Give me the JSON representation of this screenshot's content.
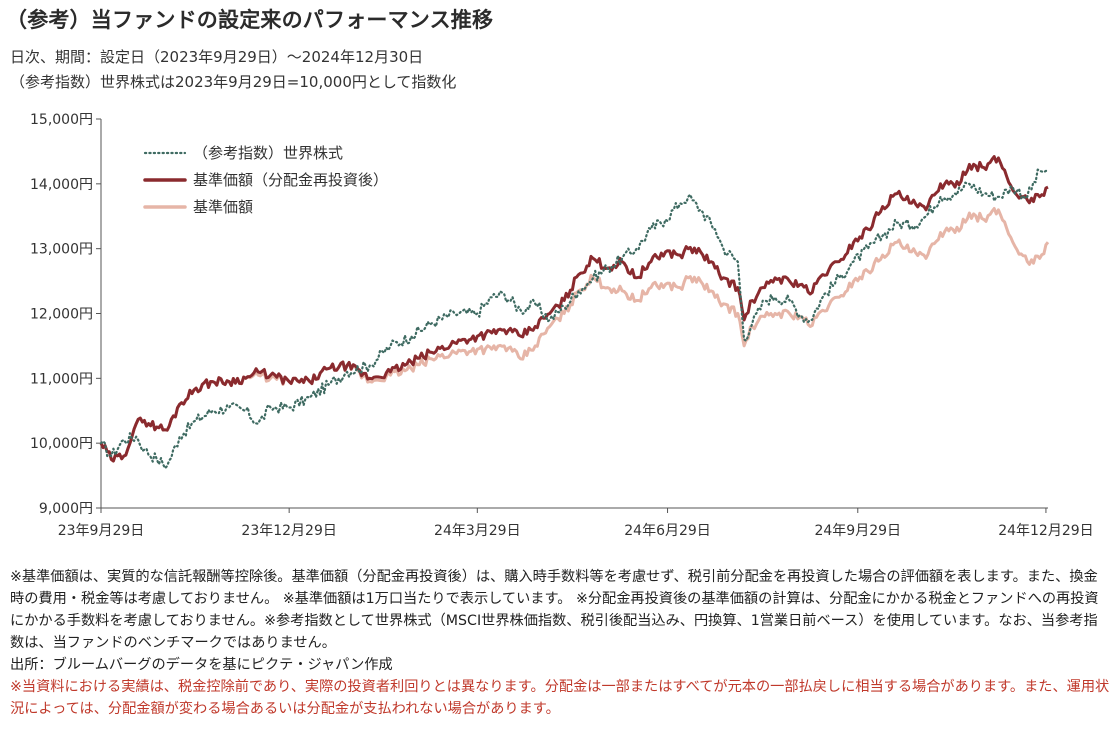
{
  "header": {
    "title": "（参考）当ファンドの設定来のパフォーマンス推移",
    "subtitle1": "日次、期間：設定日（2023年9月29日）～2024年12月30日",
    "subtitle2": "（参考指数）世界株式は2023年9月29日=10,000円として指数化"
  },
  "chart_data": {
    "type": "line",
    "ylim": [
      9000,
      15000
    ],
    "y_ticks": [
      9000,
      10000,
      11000,
      12000,
      13000,
      14000,
      15000
    ],
    "y_tick_labels": [
      "9,000円",
      "10,000円",
      "11,000円",
      "12,000円",
      "13,000円",
      "14,000円",
      "15,000円"
    ],
    "x_range": [
      "2023-09-29",
      "2024-12-30"
    ],
    "x_ticks": [
      "2023-09-29",
      "2023-12-29",
      "2024-03-29",
      "2024-06-29",
      "2024-09-29",
      "2024-12-29"
    ],
    "x_tick_labels": [
      "23年9月29日",
      "23年12月29日",
      "24年3月29日",
      "24年6月29日",
      "24年9月29日",
      "24年12月29日"
    ],
    "legend_position": "top-left",
    "grid": false,
    "series": [
      {
        "name": "（参考指数）世界株式",
        "style": "dotted",
        "color": "#3f6b62",
        "points": [
          [
            "2023-09-29",
            10000
          ],
          [
            "2023-10-04",
            9800
          ],
          [
            "2023-10-10",
            10050
          ],
          [
            "2023-10-16",
            10100
          ],
          [
            "2023-10-20",
            9900
          ],
          [
            "2023-10-26",
            9750
          ],
          [
            "2023-10-31",
            9650
          ],
          [
            "2023-11-06",
            10100
          ],
          [
            "2023-11-14",
            10350
          ],
          [
            "2023-11-22",
            10500
          ],
          [
            "2023-11-30",
            10550
          ],
          [
            "2023-12-08",
            10500
          ],
          [
            "2023-12-14",
            10300
          ],
          [
            "2023-12-20",
            10550
          ],
          [
            "2023-12-29",
            10550
          ],
          [
            "2024-01-08",
            10700
          ],
          [
            "2024-01-17",
            10900
          ],
          [
            "2024-01-26",
            11100
          ],
          [
            "2024-02-06",
            11200
          ],
          [
            "2024-02-16",
            11500
          ],
          [
            "2024-02-26",
            11650
          ],
          [
            "2024-03-07",
            11850
          ],
          [
            "2024-03-18",
            12000
          ],
          [
            "2024-03-29",
            12000
          ],
          [
            "2024-04-05",
            12250
          ],
          [
            "2024-04-11",
            12300
          ],
          [
            "2024-04-19",
            12050
          ],
          [
            "2024-04-26",
            12150
          ],
          [
            "2024-05-03",
            11900
          ],
          [
            "2024-05-10",
            12100
          ],
          [
            "2024-05-17",
            12350
          ],
          [
            "2024-05-24",
            12550
          ],
          [
            "2024-05-31",
            12700
          ],
          [
            "2024-06-07",
            12850
          ],
          [
            "2024-06-14",
            13000
          ],
          [
            "2024-06-21",
            13300
          ],
          [
            "2024-06-28",
            13450
          ],
          [
            "2024-07-05",
            13700
          ],
          [
            "2024-07-09",
            13800
          ],
          [
            "2024-07-15",
            13600
          ],
          [
            "2024-07-22",
            13300
          ],
          [
            "2024-07-26",
            13000
          ],
          [
            "2024-08-02",
            12800
          ],
          [
            "2024-08-05",
            11600
          ],
          [
            "2024-08-09",
            11850
          ],
          [
            "2024-08-15",
            12200
          ],
          [
            "2024-08-20",
            12250
          ],
          [
            "2024-08-27",
            12200
          ],
          [
            "2024-09-02",
            11950
          ],
          [
            "2024-09-06",
            11900
          ],
          [
            "2024-09-12",
            12250
          ],
          [
            "2024-09-20",
            12550
          ],
          [
            "2024-09-27",
            12800
          ],
          [
            "2024-10-04",
            13000
          ],
          [
            "2024-10-11",
            13200
          ],
          [
            "2024-10-18",
            13400
          ],
          [
            "2024-10-25",
            13350
          ],
          [
            "2024-11-01",
            13500
          ],
          [
            "2024-11-08",
            13800
          ],
          [
            "2024-11-15",
            13850
          ],
          [
            "2024-11-22",
            14000
          ],
          [
            "2024-11-29",
            13850
          ],
          [
            "2024-12-06",
            13800
          ],
          [
            "2024-12-13",
            13950
          ],
          [
            "2024-12-20",
            13800
          ],
          [
            "2024-12-26",
            14200
          ],
          [
            "2024-12-30",
            14200
          ]
        ]
      },
      {
        "name": "基準価額（分配金再投資後）",
        "style": "solid",
        "color": "#8a2a2e",
        "points": [
          [
            "2023-09-29",
            10000
          ],
          [
            "2023-10-04",
            9750
          ],
          [
            "2023-10-10",
            9800
          ],
          [
            "2023-10-16",
            10300
          ],
          [
            "2023-10-20",
            10350
          ],
          [
            "2023-10-26",
            10250
          ],
          [
            "2023-10-31",
            10200
          ],
          [
            "2023-11-06",
            10600
          ],
          [
            "2023-11-14",
            10850
          ],
          [
            "2023-11-22",
            10950
          ],
          [
            "2023-11-30",
            10950
          ],
          [
            "2023-12-08",
            11000
          ],
          [
            "2023-12-14",
            11100
          ],
          [
            "2023-12-20",
            11050
          ],
          [
            "2023-12-29",
            10950
          ],
          [
            "2024-01-08",
            10950
          ],
          [
            "2024-01-17",
            11150
          ],
          [
            "2024-01-26",
            11200
          ],
          [
            "2024-02-06",
            11000
          ],
          [
            "2024-02-16",
            11100
          ],
          [
            "2024-02-26",
            11250
          ],
          [
            "2024-03-07",
            11400
          ],
          [
            "2024-03-18",
            11550
          ],
          [
            "2024-03-29",
            11650
          ],
          [
            "2024-04-05",
            11700
          ],
          [
            "2024-04-11",
            11750
          ],
          [
            "2024-04-19",
            11650
          ],
          [
            "2024-04-26",
            11800
          ],
          [
            "2024-05-03",
            12000
          ],
          [
            "2024-05-10",
            12200
          ],
          [
            "2024-05-17",
            12600
          ],
          [
            "2024-05-24",
            12850
          ],
          [
            "2024-05-31",
            12700
          ],
          [
            "2024-06-07",
            12800
          ],
          [
            "2024-06-14",
            12550
          ],
          [
            "2024-06-21",
            12800
          ],
          [
            "2024-06-28",
            12950
          ],
          [
            "2024-07-05",
            12900
          ],
          [
            "2024-07-09",
            13000
          ],
          [
            "2024-07-15",
            12950
          ],
          [
            "2024-07-22",
            12700
          ],
          [
            "2024-07-26",
            12550
          ],
          [
            "2024-08-02",
            12400
          ],
          [
            "2024-08-05",
            11900
          ],
          [
            "2024-08-09",
            12200
          ],
          [
            "2024-08-15",
            12400
          ],
          [
            "2024-08-20",
            12550
          ],
          [
            "2024-08-27",
            12500
          ],
          [
            "2024-09-02",
            12450
          ],
          [
            "2024-09-06",
            12300
          ],
          [
            "2024-09-12",
            12600
          ],
          [
            "2024-09-20",
            12800
          ],
          [
            "2024-09-27",
            13100
          ],
          [
            "2024-10-04",
            13300
          ],
          [
            "2024-10-11",
            13650
          ],
          [
            "2024-10-18",
            13850
          ],
          [
            "2024-10-25",
            13700
          ],
          [
            "2024-11-01",
            13600
          ],
          [
            "2024-11-08",
            14000
          ],
          [
            "2024-11-15",
            13950
          ],
          [
            "2024-11-22",
            14300
          ],
          [
            "2024-11-29",
            14250
          ],
          [
            "2024-12-06",
            14400
          ],
          [
            "2024-12-13",
            13900
          ],
          [
            "2024-12-20",
            13750
          ],
          [
            "2024-12-26",
            13800
          ],
          [
            "2024-12-30",
            13950
          ]
        ]
      },
      {
        "name": "基準価額",
        "style": "solid",
        "color": "#e6b5a7",
        "points": [
          [
            "2023-09-29",
            10000
          ],
          [
            "2023-10-04",
            9750
          ],
          [
            "2023-10-10",
            9800
          ],
          [
            "2023-10-16",
            10300
          ],
          [
            "2023-10-20",
            10350
          ],
          [
            "2023-10-26",
            10250
          ],
          [
            "2023-10-31",
            10200
          ],
          [
            "2023-11-06",
            10600
          ],
          [
            "2023-11-14",
            10850
          ],
          [
            "2023-11-22",
            10950
          ],
          [
            "2023-11-30",
            10950
          ],
          [
            "2023-12-08",
            11000
          ],
          [
            "2023-12-14",
            11050
          ],
          [
            "2023-12-20",
            11000
          ],
          [
            "2023-12-29",
            10950
          ],
          [
            "2024-01-08",
            10950
          ],
          [
            "2024-01-17",
            11150
          ],
          [
            "2024-01-26",
            11200
          ],
          [
            "2024-02-06",
            10950
          ],
          [
            "2024-02-16",
            11050
          ],
          [
            "2024-02-26",
            11150
          ],
          [
            "2024-03-07",
            11300
          ],
          [
            "2024-03-18",
            11400
          ],
          [
            "2024-03-29",
            11450
          ],
          [
            "2024-04-05",
            11450
          ],
          [
            "2024-04-11",
            11500
          ],
          [
            "2024-04-19",
            11300
          ],
          [
            "2024-04-26",
            11500
          ],
          [
            "2024-05-03",
            11800
          ],
          [
            "2024-05-10",
            12000
          ],
          [
            "2024-05-17",
            12350
          ],
          [
            "2024-05-24",
            12550
          ],
          [
            "2024-05-31",
            12400
          ],
          [
            "2024-06-07",
            12350
          ],
          [
            "2024-06-14",
            12200
          ],
          [
            "2024-06-21",
            12400
          ],
          [
            "2024-06-28",
            12450
          ],
          [
            "2024-07-05",
            12400
          ],
          [
            "2024-07-09",
            12550
          ],
          [
            "2024-07-15",
            12500
          ],
          [
            "2024-07-22",
            12250
          ],
          [
            "2024-07-26",
            12150
          ],
          [
            "2024-08-02",
            12000
          ],
          [
            "2024-08-05",
            11500
          ],
          [
            "2024-08-09",
            11800
          ],
          [
            "2024-08-15",
            11950
          ],
          [
            "2024-08-20",
            12000
          ],
          [
            "2024-08-27",
            12000
          ],
          [
            "2024-09-02",
            11950
          ],
          [
            "2024-09-06",
            11800
          ],
          [
            "2024-09-12",
            12050
          ],
          [
            "2024-09-20",
            12250
          ],
          [
            "2024-09-27",
            12500
          ],
          [
            "2024-10-04",
            12650
          ],
          [
            "2024-10-11",
            12900
          ],
          [
            "2024-10-18",
            13100
          ],
          [
            "2024-10-25",
            12950
          ],
          [
            "2024-11-01",
            12850
          ],
          [
            "2024-11-08",
            13250
          ],
          [
            "2024-11-15",
            13250
          ],
          [
            "2024-11-22",
            13550
          ],
          [
            "2024-11-29",
            13450
          ],
          [
            "2024-12-06",
            13600
          ],
          [
            "2024-12-13",
            13100
          ],
          [
            "2024-12-20",
            12800
          ],
          [
            "2024-12-26",
            12850
          ],
          [
            "2024-12-30",
            13100
          ]
        ]
      }
    ]
  },
  "notes": {
    "p1": "※基準価額は、実質的な信託報酬等控除後。基準価額（分配金再投資後）は、購入時手数料等を考慮せず、税引前分配金を再投資した場合の評価額を表します。また、換金時の費用・税金等は考慮しておりません。 ※基準価額は1万口当たりで表示しています。 ※分配金再投資後の基準価額の計算は、分配金にかかる税金とファンドへの再投資にかかる手数料を考慮しておりません。※参考指数として世界株式（MSCI世界株価指数、税引後配当込み、円換算、1営業日前ベース）を使用しています。なお、当参考指数は、当ファンドのベンチマークではありません。",
    "p2": "出所：ブルームバーグのデータを基にピクテ・ジャパン作成",
    "p3": "※当資料における実績は、税金控除前であり、実際の投資者利回りとは異なります。分配金は一部またはすべてが元本の一部払戻しに相当する場合があります。また、運用状況によっては、分配金額が変わる場合あるいは分配金が支払われない場合があります。"
  }
}
